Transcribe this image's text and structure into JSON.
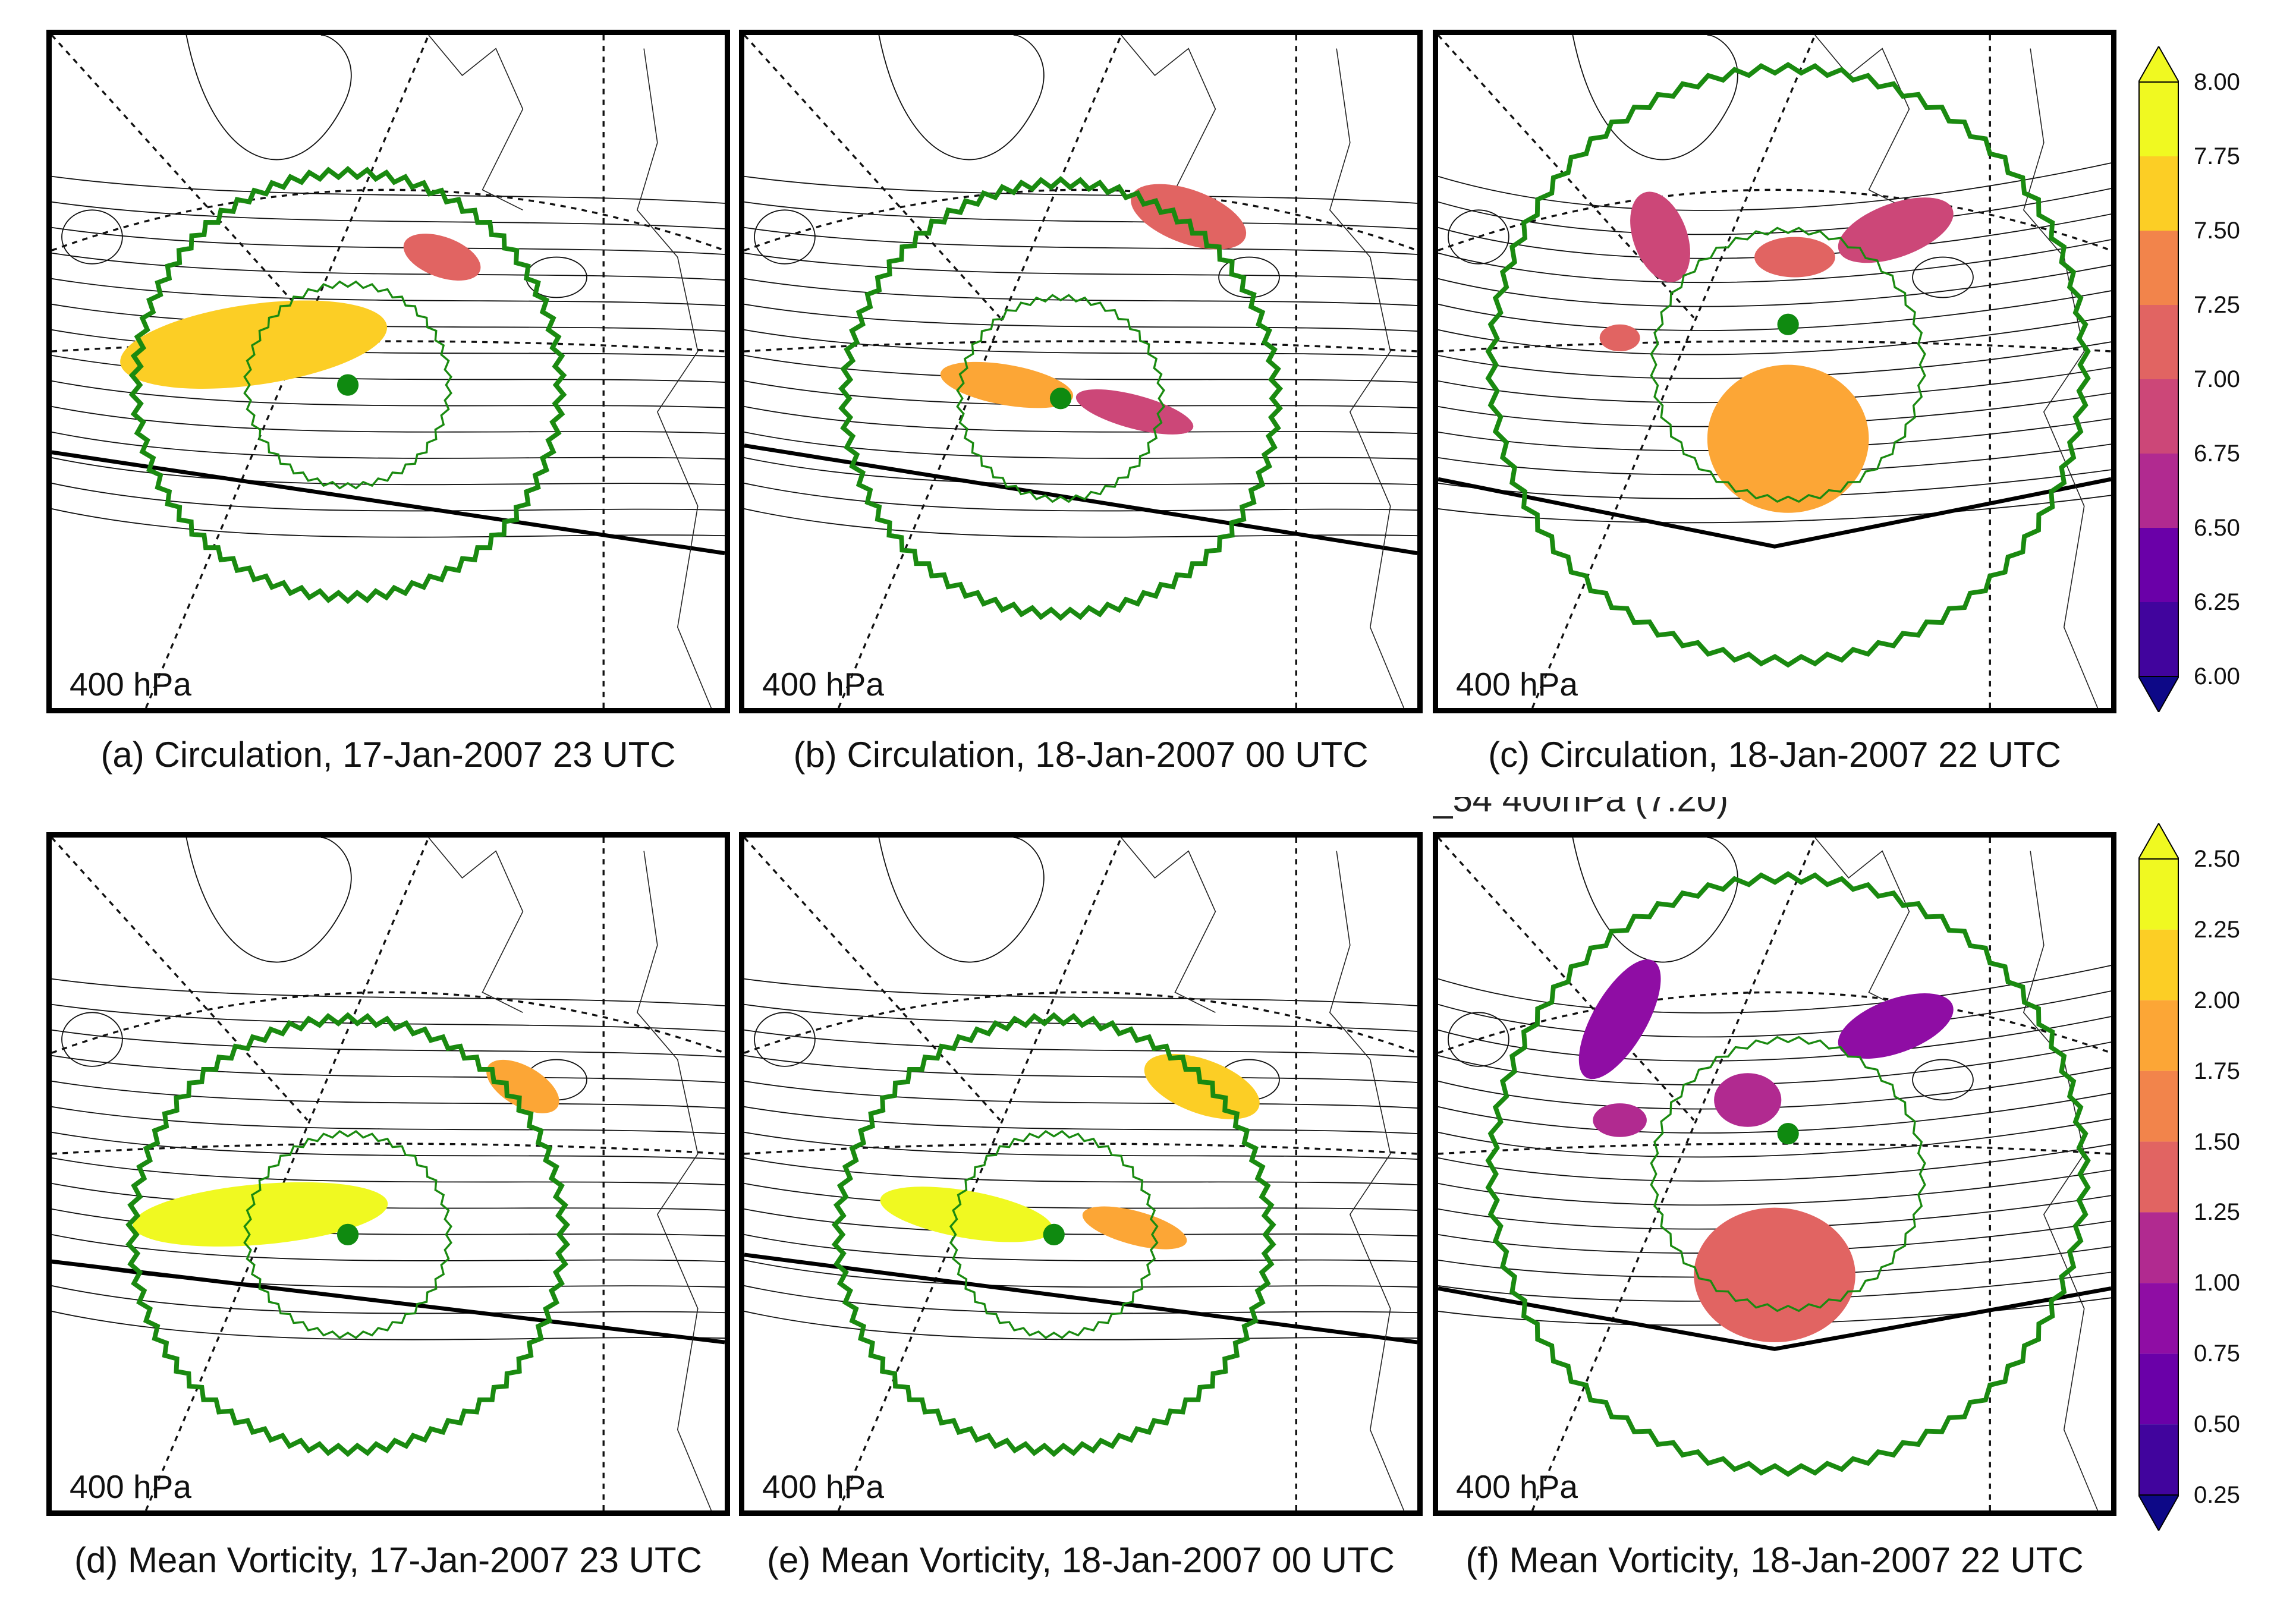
{
  "panels": [
    {
      "level": "400 hPa",
      "caption": "(a) Circulation, 17-Jan-2007 23 UTC",
      "scale": "circulation",
      "fill_level": 7.75
    },
    {
      "level": "400 hPa",
      "caption": "(b) Circulation, 18-Jan-2007 00 UTC",
      "scale": "circulation",
      "fill_level": 7.5
    },
    {
      "level": "400 hPa",
      "caption": "(c) Circulation, 18-Jan-2007 22 UTC",
      "scale": "circulation",
      "fill_level": 7.5
    },
    {
      "level": "400 hPa",
      "caption": "(d) Mean Vorticity, 17-Jan-2007 23 UTC",
      "scale": "vorticity",
      "fill_level": 2.5
    },
    {
      "level": "400 hPa",
      "caption": "(e) Mean Vorticity, 18-Jan-2007 00 UTC",
      "scale": "vorticity",
      "fill_level": 2.5
    },
    {
      "level": "400 hPa",
      "caption": "(f) Mean Vorticity, 18-Jan-2007 22 UTC",
      "scale": "vorticity",
      "fill_level": 1.5
    }
  ],
  "ghost_text": "_54 400hPa (7:20)",
  "colorbars": {
    "circulation": {
      "ticks": [
        "8.00",
        "7.75",
        "7.50",
        "7.25",
        "7.00",
        "6.75",
        "6.50",
        "6.25",
        "6.00"
      ]
    },
    "vorticity": {
      "ticks": [
        "2.50",
        "2.25",
        "2.00",
        "1.75",
        "1.50",
        "1.25",
        "1.00",
        "0.75",
        "0.50",
        "0.25"
      ]
    }
  },
  "colors": {
    "plasma": [
      "#0d0887",
      "#41049d",
      "#6a00a8",
      "#8f0da4",
      "#b12a90",
      "#cc4778",
      "#e16462",
      "#f2844b",
      "#fca636",
      "#fcce25",
      "#f0f921"
    ],
    "outer_circle": "#1a8a10",
    "inner_circle": "#1a8a10",
    "center_dot": "#0f8a10"
  }
}
